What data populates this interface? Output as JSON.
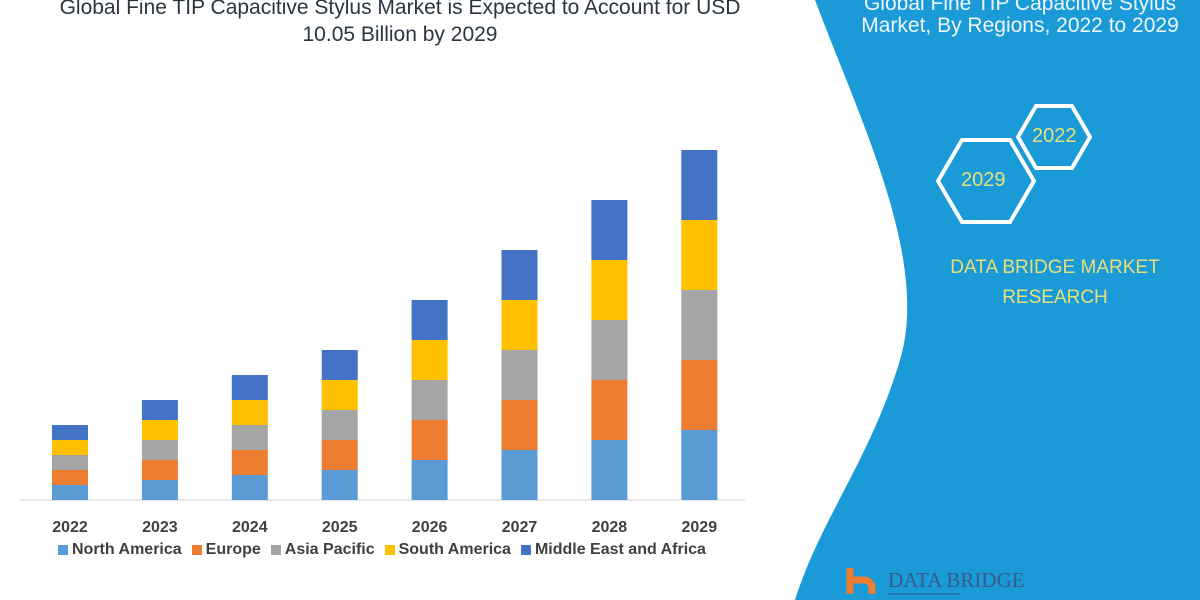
{
  "chart_data": {
    "type": "bar",
    "stacked": true,
    "title": "Global Fine TIP Capacitive Stylus Market is Expected to Account for USD 10.05 Billion by 2029",
    "categories": [
      "2022",
      "2023",
      "2024",
      "2025",
      "2026",
      "2027",
      "2028",
      "2029"
    ],
    "series": [
      {
        "name": "North America",
        "color": "#5b9bd5",
        "values": [
          15,
          20,
          25,
          30,
          40,
          50,
          60,
          70
        ]
      },
      {
        "name": "Europe",
        "color": "#ed7d31",
        "values": [
          15,
          20,
          25,
          30,
          40,
          50,
          60,
          70
        ]
      },
      {
        "name": "Asia Pacific",
        "color": "#a5a5a5",
        "values": [
          15,
          20,
          25,
          30,
          40,
          50,
          60,
          70
        ]
      },
      {
        "name": "South America",
        "color": "#ffc000",
        "values": [
          15,
          20,
          25,
          30,
          40,
          50,
          60,
          70
        ]
      },
      {
        "name": "Middle East and Africa",
        "color": "#4472c4",
        "values": [
          15,
          20,
          25,
          30,
          40,
          50,
          60,
          70
        ]
      }
    ],
    "ylim": [
      0,
      350
    ],
    "grid": false,
    "legend_position": "bottom"
  },
  "title_line1": "Global Fine TIP Capacitive Stylus Market is Expected to Account for USD",
  "title_line2": "10.05 Billion by 2029",
  "side_panel": {
    "title_line1": "Global Fine TIP Capacitive Stylus",
    "title_line2": "Market, By Regions, 2022 to 2029",
    "hex_a": "2022",
    "hex_b": "2029",
    "brand_line1": "DATA BRIDGE MARKET",
    "brand_line2": "RESEARCH",
    "logo_text": "DATA BRIDGE",
    "panel_color": "#1a9ad6"
  }
}
